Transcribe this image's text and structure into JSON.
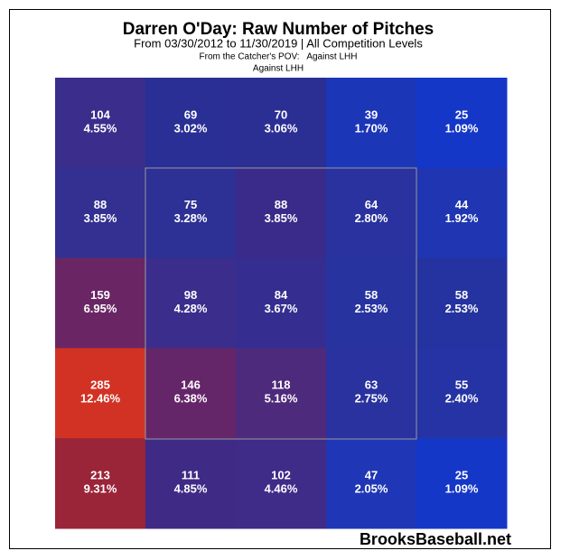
{
  "chart_data": {
    "type": "heatmap",
    "title": "Darren O'Day: Raw Number of Pitches",
    "subtitle": "From 03/30/2012 to 11/30/2019 | All Competition Levels",
    "note": "From the Catcher's POV:   Against LHH",
    "note2": "Against LHH",
    "watermark": "BrooksBaseball.net",
    "values": [
      [
        104,
        69,
        70,
        39,
        25
      ],
      [
        88,
        75,
        88,
        64,
        44
      ],
      [
        159,
        98,
        84,
        58,
        58
      ],
      [
        285,
        146,
        118,
        63,
        55
      ],
      [
        213,
        111,
        102,
        47,
        25
      ]
    ],
    "percents": [
      [
        4.55,
        3.02,
        3.06,
        1.7,
        1.09
      ],
      [
        3.85,
        3.28,
        3.85,
        2.8,
        1.92
      ],
      [
        6.95,
        4.28,
        3.67,
        2.53,
        2.53
      ],
      [
        12.46,
        6.38,
        5.16,
        2.75,
        2.4
      ],
      [
        9.31,
        4.85,
        4.46,
        2.05,
        1.09
      ]
    ],
    "percent_labels": [
      [
        "4.55%",
        "3.02%",
        "3.06%",
        "1.70%",
        "1.09%"
      ],
      [
        "3.85%",
        "3.28%",
        "3.85%",
        "2.80%",
        "1.92%"
      ],
      [
        "6.95%",
        "4.28%",
        "3.67%",
        "2.53%",
        "2.53%"
      ],
      [
        "12.46%",
        "6.38%",
        "5.16%",
        "2.75%",
        "2.40%"
      ],
      [
        "9.31%",
        "4.85%",
        "4.46%",
        "2.05%",
        "1.09%"
      ]
    ],
    "colors": [
      [
        "#3b2d8c",
        "#2a2f96",
        "#2b2f94",
        "#1c36b8",
        "#1537c8"
      ],
      [
        "#333091",
        "#2d3094",
        "#3a2a8a",
        "#29329e",
        "#1f35b2"
      ],
      [
        "#6a2664",
        "#3a2d8c",
        "#352e90",
        "#27339f",
        "#24339f"
      ],
      [
        "#d23224",
        "#642668",
        "#4e2a7c",
        "#29329e",
        "#2533a4"
      ],
      [
        "#9a2438",
        "#3f2b86",
        "#3f2b88",
        "#1f37b6",
        "#1537c8"
      ]
    ]
  }
}
